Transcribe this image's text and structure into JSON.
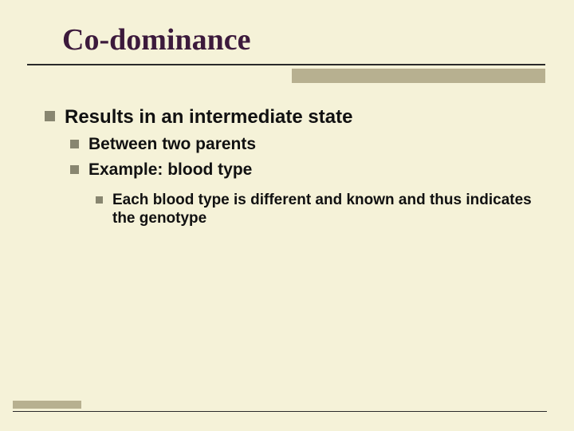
{
  "title": "Co-dominance",
  "bullets": {
    "l1": "Results in an intermediate state",
    "l2a": "Between two parents",
    "l2b": "Example: blood type",
    "l3": "Each blood type is different and known and thus indicates the genotype"
  },
  "colors": {
    "background": "#f5f2d8",
    "title": "#3c1a3c",
    "bullet": "#888670",
    "accent_bar": "#b7b090",
    "rule": "#2a2a2a"
  }
}
